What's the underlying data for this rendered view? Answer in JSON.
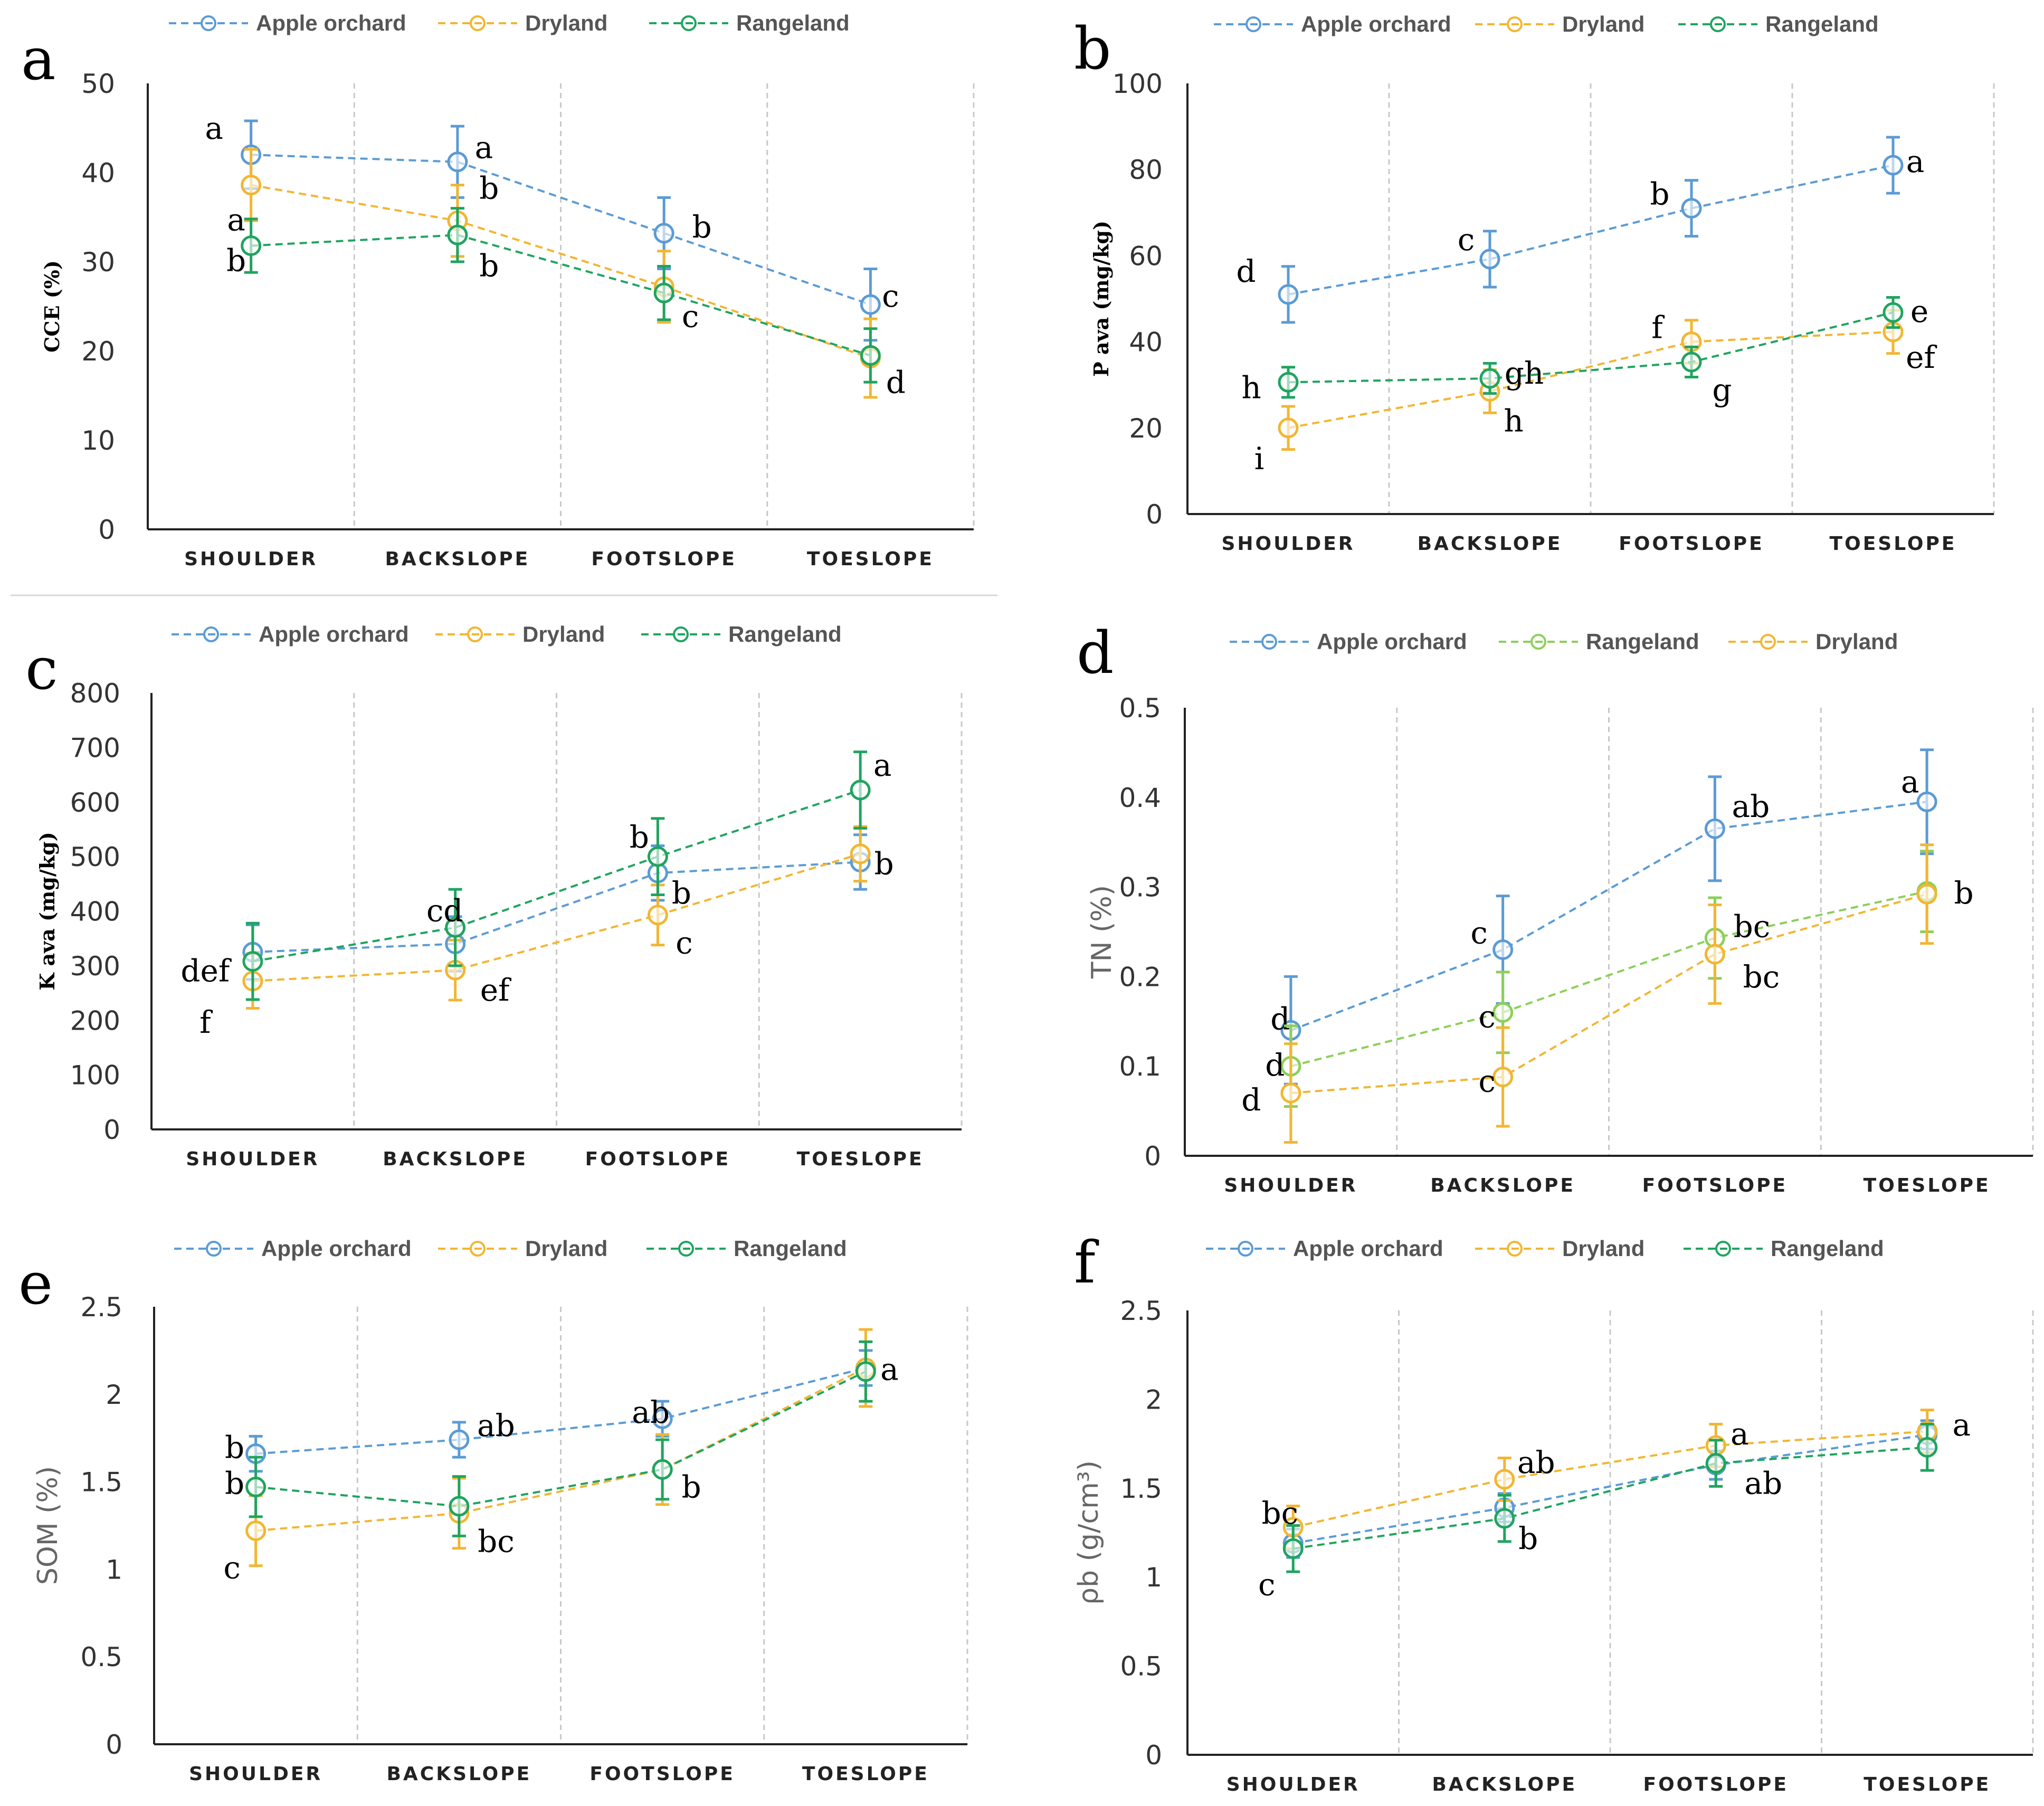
{
  "figure": {
    "categories": [
      "SHOULDER",
      "BACKSLOPE",
      "FOOTSLOPE",
      "TOESLOPE"
    ],
    "colors": {
      "Apple orchard": "#5b9bd5",
      "Dryland": "#f2b632",
      "Rangeland": "#1fa45f",
      "Rangeland_light": "#8ccf5a"
    }
  },
  "chart_data": [
    {
      "type": "line",
      "panel": "a",
      "title": "",
      "xlabel": "",
      "ylabel": "CCE (%)",
      "ylim": [
        0,
        50
      ],
      "ticks": [
        0,
        10,
        20,
        30,
        40,
        50
      ],
      "categories": [
        "SHOULDER",
        "BACKSLOPE",
        "FOOTSLOPE",
        "TOESLOPE"
      ],
      "legend": [
        "Apple orchard",
        "Dryland",
        "Rangeland"
      ],
      "series": [
        {
          "name": "Apple orchard",
          "values": [
            42,
            41.2,
            33.2,
            25.2
          ],
          "errors": [
            3.8,
            4,
            4,
            4
          ],
          "letters": [
            "a",
            "a",
            "b",
            "c"
          ]
        },
        {
          "name": "Dryland",
          "values": [
            38.6,
            34.6,
            27.2,
            19.2
          ],
          "errors": [
            4,
            4,
            4,
            4.4
          ],
          "letters": [
            "a",
            "b",
            "c",
            "d"
          ]
        },
        {
          "name": "Rangeland",
          "values": [
            31.8,
            33,
            26.5,
            19.5
          ],
          "errors": [
            3,
            3,
            3,
            3
          ],
          "letters": [
            "b",
            "b",
            "",
            ""
          ]
        }
      ]
    },
    {
      "type": "line",
      "panel": "b",
      "title": "",
      "xlabel": "",
      "ylabel": "P ava (mg/kg)",
      "ylim": [
        0,
        100
      ],
      "ticks": [
        0,
        20,
        40,
        60,
        80,
        100
      ],
      "categories": [
        "SHOULDER",
        "BACKSLOPE",
        "FOOTSLOPE",
        "TOESLOPE"
      ],
      "legend": [
        "Apple orchard",
        "Dryland",
        "Rangeland"
      ],
      "series": [
        {
          "name": "Apple orchard",
          "values": [
            51,
            59.2,
            71,
            81
          ],
          "errors": [
            6.5,
            6.5,
            6.5,
            6.5
          ],
          "letters": [
            "d",
            "c",
            "b",
            "a"
          ]
        },
        {
          "name": "Dryland",
          "values": [
            20,
            28.5,
            40,
            42.3
          ],
          "errors": [
            5,
            5,
            5,
            5
          ],
          "letters": [
            "i",
            "h",
            "f",
            "ef"
          ]
        },
        {
          "name": "Rangeland",
          "values": [
            30.6,
            31.5,
            35.3,
            46.8
          ],
          "errors": [
            3.5,
            3.5,
            3.5,
            3.5
          ],
          "letters": [
            "h",
            "gh",
            "g",
            "e"
          ]
        }
      ]
    },
    {
      "type": "line",
      "panel": "c",
      "title": "",
      "xlabel": "",
      "ylabel": "K ava (mg/kg)",
      "ylim": [
        0,
        800
      ],
      "ticks": [
        0,
        100,
        200,
        300,
        400,
        500,
        600,
        700,
        800
      ],
      "categories": [
        "SHOULDER",
        "BACKSLOPE",
        "FOOTSLOPE",
        "TOESLOPE"
      ],
      "legend": [
        "Apple orchard",
        "Dryland",
        "Rangeland"
      ],
      "series": [
        {
          "name": "Apple orchard",
          "values": [
            325,
            340,
            470,
            490
          ],
          "errors": [
            50,
            50,
            50,
            50
          ],
          "letters": [
            "",
            "",
            "b",
            "b"
          ]
        },
        {
          "name": "Dryland",
          "values": [
            272,
            292,
            393,
            505
          ],
          "errors": [
            50,
            55,
            55,
            50
          ],
          "letters": [
            "f",
            "ef",
            "c",
            ""
          ]
        },
        {
          "name": "Rangeland",
          "values": [
            308,
            370,
            500,
            622
          ],
          "errors": [
            70,
            70,
            70,
            70
          ],
          "letters": [
            "def",
            "cd",
            "b",
            "a"
          ]
        }
      ]
    },
    {
      "type": "line",
      "panel": "d",
      "title": "",
      "xlabel": "",
      "ylabel": "TN (%)",
      "ylim": [
        0,
        0.5
      ],
      "ticks": [
        0,
        0.1,
        0.2,
        0.3,
        0.4,
        0.5
      ],
      "categories": [
        "SHOULDER",
        "BACKSLOPE",
        "FOOTSLOPE",
        "TOESLOPE"
      ],
      "legend": [
        "Apple orchard",
        "Rangeland",
        "Dryland"
      ],
      "series": [
        {
          "name": "Apple orchard",
          "values": [
            0.14,
            0.23,
            0.365,
            0.395
          ],
          "errors": [
            0.06,
            0.06,
            0.058,
            0.058
          ],
          "letters": [
            "d",
            "c",
            "ab",
            "a"
          ]
        },
        {
          "name": "Rangeland",
          "values": [
            0.1,
            0.16,
            0.243,
            0.295
          ],
          "errors": [
            0.045,
            0.045,
            0.045,
            0.045
          ],
          "letters": [
            "d",
            "c",
            "bc",
            ""
          ]
        },
        {
          "name": "Dryland",
          "values": [
            0.07,
            0.088,
            0.225,
            0.292
          ],
          "errors": [
            0.055,
            0.055,
            0.055,
            0.055
          ],
          "letters": [
            "d",
            "c",
            "bc",
            "b"
          ]
        }
      ]
    },
    {
      "type": "line",
      "panel": "e",
      "title": "",
      "xlabel": "",
      "ylabel": "SOM (%)",
      "ylim": [
        0,
        2.5
      ],
      "ticks": [
        "0",
        "0.5",
        "1",
        "1.5",
        "2",
        "2.5"
      ],
      "categories": [
        "SHOULDER",
        "BACKSLOPE",
        "FOOTSLOPE",
        "TOESLOPE"
      ],
      "legend": [
        "Apple orchard",
        "Dryland",
        "Rangeland"
      ],
      "series": [
        {
          "name": "Apple orchard",
          "values": [
            1.66,
            1.74,
            1.86,
            2.15
          ],
          "errors": [
            0.1,
            0.1,
            0.1,
            0.1
          ],
          "letters": [
            "b",
            "ab",
            "ab",
            ""
          ]
        },
        {
          "name": "Dryland",
          "values": [
            1.22,
            1.32,
            1.57,
            2.15
          ],
          "errors": [
            0.2,
            0.2,
            0.2,
            0.22
          ],
          "letters": [
            "c",
            "bc",
            "",
            ""
          ]
        },
        {
          "name": "Rangeland",
          "values": [
            1.47,
            1.36,
            1.57,
            2.13
          ],
          "errors": [
            0.17,
            0.17,
            0.17,
            0.17
          ],
          "letters": [
            "b",
            "",
            "b",
            "a"
          ]
        }
      ]
    },
    {
      "type": "line",
      "panel": "f",
      "title": "",
      "xlabel": "",
      "ylabel": "ρb (g/cm³)",
      "ylim": [
        0,
        2.5
      ],
      "ticks": [
        "0",
        "0.5",
        "1",
        "1.5",
        "2",
        "2.5"
      ],
      "categories": [
        "SHOULDER",
        "BACKSLOPE",
        "FOOTSLOPE",
        "TOESLOPE"
      ],
      "legend": [
        "Apple orchard",
        "Dryland",
        "Rangeland"
      ],
      "series": [
        {
          "name": "Apple orchard",
          "values": [
            1.19,
            1.39,
            1.63,
            1.8
          ],
          "errors": [
            0.08,
            0.08,
            0.08,
            0.08
          ],
          "letters": [
            "",
            "",
            "",
            ""
          ]
        },
        {
          "name": "Dryland",
          "values": [
            1.28,
            1.55,
            1.74,
            1.82
          ],
          "errors": [
            0.12,
            0.12,
            0.12,
            0.12
          ],
          "letters": [
            "bc",
            "ab",
            "a",
            "a"
          ]
        },
        {
          "name": "Rangeland",
          "values": [
            1.16,
            1.33,
            1.64,
            1.73
          ],
          "errors": [
            0.13,
            0.13,
            0.13,
            0.13
          ],
          "letters": [
            "c",
            "b",
            "ab",
            ""
          ]
        }
      ]
    }
  ]
}
